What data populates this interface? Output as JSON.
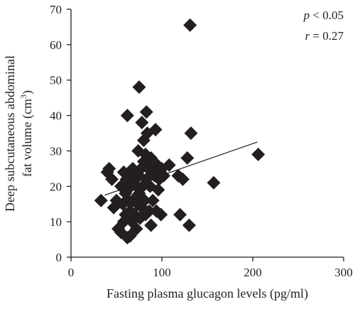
{
  "chart_data": {
    "type": "scatter",
    "xlabel": "Fasting plasma glucagon levels (pg/ml)",
    "ylabel_line1": "Deep subcutaneous abdominal",
    "ylabel_line2_prefix": "fat volume (cm",
    "ylabel_line2_sup": "3",
    "ylabel_line2_suffix": ")",
    "xlim": [
      0,
      300
    ],
    "ylim": [
      0,
      70
    ],
    "xticks": [
      "0",
      "100",
      "200",
      "300"
    ],
    "yticks": [
      "0",
      "10",
      "20",
      "30",
      "40",
      "50",
      "60",
      "70"
    ],
    "grid": false,
    "stats": {
      "p_symbol": "p",
      "p_rest": " < 0.05",
      "r_symbol": "r",
      "r_rest": " = 0.27"
    },
    "trendline": {
      "x": [
        37,
        205
      ],
      "y": [
        17.5,
        32.5
      ]
    },
    "points": [
      [
        33,
        16
      ],
      [
        40,
        24
      ],
      [
        42,
        25
      ],
      [
        45,
        22
      ],
      [
        47,
        14
      ],
      [
        50,
        16
      ],
      [
        52,
        8
      ],
      [
        55,
        7
      ],
      [
        55,
        20
      ],
      [
        57,
        15
      ],
      [
        58,
        10
      ],
      [
        58,
        24
      ],
      [
        60,
        12
      ],
      [
        60,
        18
      ],
      [
        61,
        22
      ],
      [
        62,
        5.5
      ],
      [
        62,
        40
      ],
      [
        63,
        16
      ],
      [
        64,
        24
      ],
      [
        65,
        6
      ],
      [
        65,
        13
      ],
      [
        66,
        20
      ],
      [
        67,
        10
      ],
      [
        68,
        16
      ],
      [
        68,
        25
      ],
      [
        70,
        12
      ],
      [
        70,
        22
      ],
      [
        72,
        8
      ],
      [
        72,
        20
      ],
      [
        73,
        15
      ],
      [
        74,
        30
      ],
      [
        75,
        48
      ],
      [
        75,
        18
      ],
      [
        75,
        23
      ],
      [
        76,
        11
      ],
      [
        77,
        25
      ],
      [
        78,
        14
      ],
      [
        78,
        38
      ],
      [
        79,
        20
      ],
      [
        80,
        27
      ],
      [
        80,
        33
      ],
      [
        81,
        16
      ],
      [
        82,
        12
      ],
      [
        82,
        29
      ],
      [
        83,
        41
      ],
      [
        83,
        22
      ],
      [
        84,
        35
      ],
      [
        85,
        25
      ],
      [
        86,
        13
      ],
      [
        87,
        20
      ],
      [
        88,
        9
      ],
      [
        88,
        28
      ],
      [
        90,
        16
      ],
      [
        90,
        24
      ],
      [
        92,
        23
      ],
      [
        93,
        36
      ],
      [
        94,
        13
      ],
      [
        95,
        26
      ],
      [
        96,
        19
      ],
      [
        97,
        22
      ],
      [
        99,
        12
      ],
      [
        100,
        25
      ],
      [
        102,
        23
      ],
      [
        108,
        26
      ],
      [
        118,
        23
      ],
      [
        120,
        12
      ],
      [
        123,
        22
      ],
      [
        128,
        28
      ],
      [
        130,
        9
      ],
      [
        131,
        65.5
      ],
      [
        132,
        35
      ],
      [
        157,
        21
      ],
      [
        206,
        29
      ]
    ]
  }
}
